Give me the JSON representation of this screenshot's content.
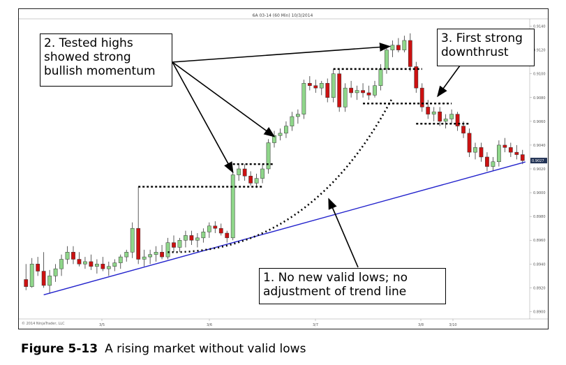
{
  "chart_data": {
    "type": "candlestick",
    "title": "6A 03-14 (60 Min) 10/3/2014",
    "copyright": "© 2014 NinjaTrader, LLC",
    "x_tick_labels": [
      "3/5",
      "3/6",
      "3/7",
      "3/8",
      "3/10"
    ],
    "y_tick_labels": [
      "0.9140",
      "0.9120",
      "0.9100",
      "0.9080",
      "0.9060",
      "0.9040",
      "0.9020",
      "0.9000",
      "0.8980",
      "0.8960",
      "0.8940",
      "0.8920",
      "0.8900"
    ],
    "last_price_label": "0.9027",
    "ylim": [
      0.8895,
      0.9145
    ],
    "candles": [
      {
        "o": 0.8927,
        "h": 0.894,
        "l": 0.8918,
        "c": 0.8921
      },
      {
        "o": 0.8921,
        "h": 0.8945,
        "l": 0.892,
        "c": 0.894
      },
      {
        "o": 0.894,
        "h": 0.8946,
        "l": 0.893,
        "c": 0.8934
      },
      {
        "o": 0.8934,
        "h": 0.895,
        "l": 0.892,
        "c": 0.8922
      },
      {
        "o": 0.8922,
        "h": 0.8935,
        "l": 0.8915,
        "c": 0.893
      },
      {
        "o": 0.893,
        "h": 0.894,
        "l": 0.8925,
        "c": 0.8936
      },
      {
        "o": 0.8936,
        "h": 0.8948,
        "l": 0.893,
        "c": 0.8944
      },
      {
        "o": 0.8944,
        "h": 0.8955,
        "l": 0.894,
        "c": 0.895
      },
      {
        "o": 0.895,
        "h": 0.8955,
        "l": 0.894,
        "c": 0.8944
      },
      {
        "o": 0.8944,
        "h": 0.895,
        "l": 0.8938,
        "c": 0.894
      },
      {
        "o": 0.894,
        "h": 0.8946,
        "l": 0.8936,
        "c": 0.8942
      },
      {
        "o": 0.8942,
        "h": 0.8948,
        "l": 0.8935,
        "c": 0.8938
      },
      {
        "o": 0.8938,
        "h": 0.8944,
        "l": 0.8932,
        "c": 0.894
      },
      {
        "o": 0.894,
        "h": 0.8946,
        "l": 0.8934,
        "c": 0.8936
      },
      {
        "o": 0.8936,
        "h": 0.8942,
        "l": 0.893,
        "c": 0.8938
      },
      {
        "o": 0.8938,
        "h": 0.8944,
        "l": 0.8934,
        "c": 0.8941
      },
      {
        "o": 0.8941,
        "h": 0.8948,
        "l": 0.8936,
        "c": 0.8946
      },
      {
        "o": 0.8946,
        "h": 0.8952,
        "l": 0.8942,
        "c": 0.895
      },
      {
        "o": 0.895,
        "h": 0.8975,
        "l": 0.8945,
        "c": 0.897
      },
      {
        "o": 0.897,
        "h": 0.9005,
        "l": 0.894,
        "c": 0.8944
      },
      {
        "o": 0.8944,
        "h": 0.8952,
        "l": 0.8938,
        "c": 0.8946
      },
      {
        "o": 0.8946,
        "h": 0.8952,
        "l": 0.894,
        "c": 0.8948
      },
      {
        "o": 0.8948,
        "h": 0.8955,
        "l": 0.8942,
        "c": 0.895
      },
      {
        "o": 0.895,
        "h": 0.8956,
        "l": 0.8944,
        "c": 0.8946
      },
      {
        "o": 0.8946,
        "h": 0.8962,
        "l": 0.8944,
        "c": 0.8958
      },
      {
        "o": 0.8958,
        "h": 0.8964,
        "l": 0.895,
        "c": 0.8954
      },
      {
        "o": 0.8954,
        "h": 0.8962,
        "l": 0.895,
        "c": 0.896
      },
      {
        "o": 0.896,
        "h": 0.8968,
        "l": 0.8954,
        "c": 0.8964
      },
      {
        "o": 0.8964,
        "h": 0.8968,
        "l": 0.8956,
        "c": 0.896
      },
      {
        "o": 0.896,
        "h": 0.8966,
        "l": 0.8954,
        "c": 0.8962
      },
      {
        "o": 0.8962,
        "h": 0.897,
        "l": 0.8958,
        "c": 0.8967
      },
      {
        "o": 0.8967,
        "h": 0.8975,
        "l": 0.8962,
        "c": 0.8972
      },
      {
        "o": 0.8972,
        "h": 0.8976,
        "l": 0.8966,
        "c": 0.897
      },
      {
        "o": 0.897,
        "h": 0.8974,
        "l": 0.8964,
        "c": 0.8966
      },
      {
        "o": 0.8966,
        "h": 0.8968,
        "l": 0.8958,
        "c": 0.8962
      },
      {
        "o": 0.8962,
        "h": 0.9018,
        "l": 0.896,
        "c": 0.9015
      },
      {
        "o": 0.9015,
        "h": 0.9024,
        "l": 0.901,
        "c": 0.902
      },
      {
        "o": 0.902,
        "h": 0.9024,
        "l": 0.901,
        "c": 0.9014
      },
      {
        "o": 0.9014,
        "h": 0.9018,
        "l": 0.9006,
        "c": 0.9008
      },
      {
        "o": 0.9008,
        "h": 0.9016,
        "l": 0.9004,
        "c": 0.9012
      },
      {
        "o": 0.9012,
        "h": 0.9024,
        "l": 0.9008,
        "c": 0.902
      },
      {
        "o": 0.902,
        "h": 0.9045,
        "l": 0.9016,
        "c": 0.9042
      },
      {
        "o": 0.9042,
        "h": 0.9052,
        "l": 0.9038,
        "c": 0.9048
      },
      {
        "o": 0.9048,
        "h": 0.9054,
        "l": 0.9044,
        "c": 0.905
      },
      {
        "o": 0.905,
        "h": 0.906,
        "l": 0.9046,
        "c": 0.9056
      },
      {
        "o": 0.9056,
        "h": 0.9068,
        "l": 0.9052,
        "c": 0.9064
      },
      {
        "o": 0.9064,
        "h": 0.907,
        "l": 0.9058,
        "c": 0.9066
      },
      {
        "o": 0.9066,
        "h": 0.9095,
        "l": 0.9062,
        "c": 0.9092
      },
      {
        "o": 0.9092,
        "h": 0.9098,
        "l": 0.9086,
        "c": 0.909
      },
      {
        "o": 0.909,
        "h": 0.9095,
        "l": 0.9084,
        "c": 0.9088
      },
      {
        "o": 0.9088,
        "h": 0.9094,
        "l": 0.9082,
        "c": 0.9092
      },
      {
        "o": 0.9092,
        "h": 0.9096,
        "l": 0.9076,
        "c": 0.908
      },
      {
        "o": 0.908,
        "h": 0.9104,
        "l": 0.9076,
        "c": 0.91
      },
      {
        "o": 0.91,
        "h": 0.9104,
        "l": 0.9068,
        "c": 0.9072
      },
      {
        "o": 0.9072,
        "h": 0.9092,
        "l": 0.9068,
        "c": 0.9088
      },
      {
        "o": 0.9088,
        "h": 0.9094,
        "l": 0.908,
        "c": 0.9084
      },
      {
        "o": 0.9084,
        "h": 0.909,
        "l": 0.9078,
        "c": 0.9086
      },
      {
        "o": 0.9086,
        "h": 0.9092,
        "l": 0.908,
        "c": 0.9084
      },
      {
        "o": 0.9084,
        "h": 0.909,
        "l": 0.9078,
        "c": 0.9082
      },
      {
        "o": 0.9082,
        "h": 0.9094,
        "l": 0.908,
        "c": 0.909
      },
      {
        "o": 0.909,
        "h": 0.9108,
        "l": 0.9086,
        "c": 0.9104
      },
      {
        "o": 0.9104,
        "h": 0.9124,
        "l": 0.91,
        "c": 0.912
      },
      {
        "o": 0.912,
        "h": 0.9128,
        "l": 0.9114,
        "c": 0.9124
      },
      {
        "o": 0.9124,
        "h": 0.913,
        "l": 0.9118,
        "c": 0.912
      },
      {
        "o": 0.912,
        "h": 0.9132,
        "l": 0.9118,
        "c": 0.9128
      },
      {
        "o": 0.9128,
        "h": 0.9134,
        "l": 0.9102,
        "c": 0.9106
      },
      {
        "o": 0.9106,
        "h": 0.911,
        "l": 0.9084,
        "c": 0.9088
      },
      {
        "o": 0.9088,
        "h": 0.9092,
        "l": 0.9068,
        "c": 0.9072
      },
      {
        "o": 0.9072,
        "h": 0.9078,
        "l": 0.9062,
        "c": 0.9066
      },
      {
        "o": 0.9066,
        "h": 0.9072,
        "l": 0.906,
        "c": 0.9068
      },
      {
        "o": 0.9068,
        "h": 0.9072,
        "l": 0.9056,
        "c": 0.906
      },
      {
        "o": 0.906,
        "h": 0.9066,
        "l": 0.9054,
        "c": 0.9062
      },
      {
        "o": 0.9062,
        "h": 0.907,
        "l": 0.9058,
        "c": 0.9066
      },
      {
        "o": 0.9066,
        "h": 0.9068,
        "l": 0.9052,
        "c": 0.9056
      },
      {
        "o": 0.9056,
        "h": 0.906,
        "l": 0.9046,
        "c": 0.905
      },
      {
        "o": 0.905,
        "h": 0.9054,
        "l": 0.903,
        "c": 0.9034
      },
      {
        "o": 0.9034,
        "h": 0.9042,
        "l": 0.9028,
        "c": 0.9038
      },
      {
        "o": 0.9038,
        "h": 0.9042,
        "l": 0.9026,
        "c": 0.903
      },
      {
        "o": 0.903,
        "h": 0.9034,
        "l": 0.9018,
        "c": 0.9022
      },
      {
        "o": 0.9022,
        "h": 0.903,
        "l": 0.9018,
        "c": 0.9026
      },
      {
        "o": 0.9026,
        "h": 0.9044,
        "l": 0.9022,
        "c": 0.904
      },
      {
        "o": 0.904,
        "h": 0.9046,
        "l": 0.9034,
        "c": 0.9038
      },
      {
        "o": 0.9038,
        "h": 0.9042,
        "l": 0.903,
        "c": 0.9034
      },
      {
        "o": 0.9034,
        "h": 0.904,
        "l": 0.9028,
        "c": 0.9032
      },
      {
        "o": 0.9032,
        "h": 0.9036,
        "l": 0.9024,
        "c": 0.9027
      }
    ],
    "annotations": [
      {
        "id": "tested-highs",
        "text": "2. Tested highs\nshowed strong\nbullish momentum"
      },
      {
        "id": "downthrust",
        "text": "3. First strong\ndownthrust"
      },
      {
        "id": "no-valid-lows",
        "text": "1. No new valid lows; no\nadjustment of trend line"
      }
    ],
    "colors": {
      "up": "#8fd68a",
      "down": "#cc1111",
      "trendline": "#2222cc",
      "level": "#000000"
    }
  },
  "caption": {
    "label": "Figure 5-13",
    "text": "A rising market without valid lows"
  }
}
